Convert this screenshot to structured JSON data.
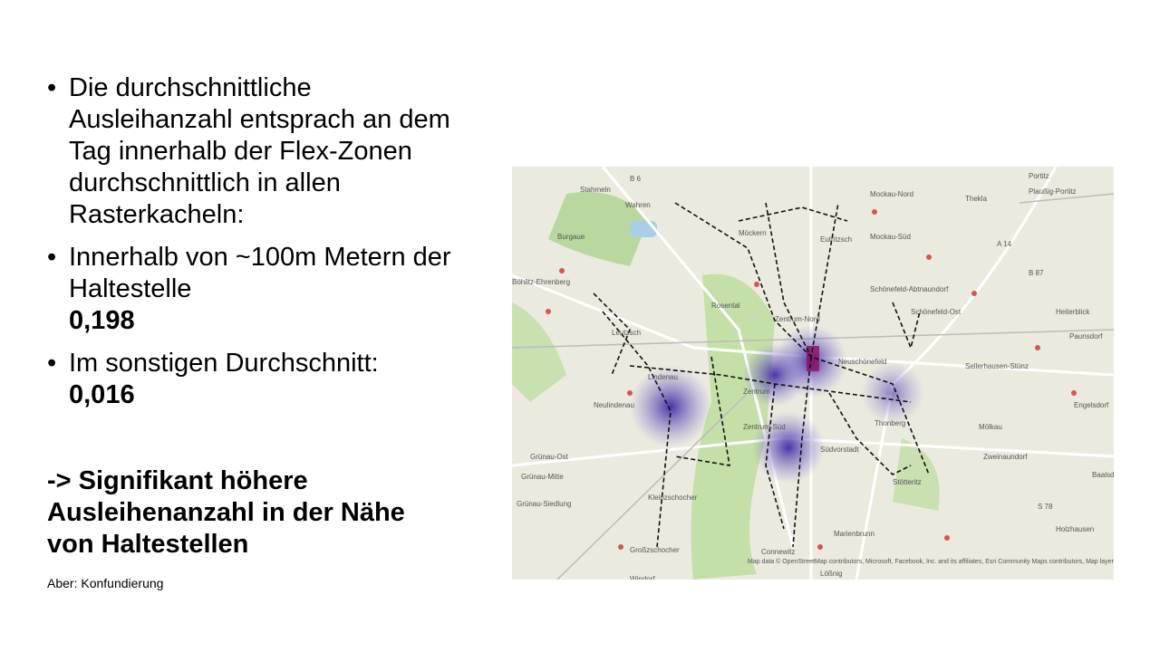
{
  "bullets": [
    {
      "text": "Die durchschnittliche Ausleihanzahl entsprach an dem Tag innerhalb der Flex-Zonen durchschnittlich in allen Rasterkacheln:"
    },
    {
      "text": "Innerhalb von ~100m Metern der Haltestelle",
      "value": "0,198"
    },
    {
      "text": "Im sonstigen Durchschnitt:",
      "value": "0,016"
    }
  ],
  "conclusion": "-> Signifikant höhere Ausleihenanzahl in der Nähe von Haltestellen",
  "note": "Aber: Konfundierung",
  "map": {
    "labels": [
      "Stahmeln",
      "Wahren",
      "Burgaue",
      "Böhlitz-Ehrenberg",
      "Möckern",
      "Eutritzsch",
      "Mockau-Nord",
      "Mockau-Süd",
      "Thekla",
      "Portitz",
      "Plaußig-Portitz",
      "Schönefeld-Abtnaundorf",
      "Schönefeld-Ost",
      "Heiterblick",
      "Paunsdorf",
      "Sellerhausen-Stünz",
      "Engelsdorf",
      "Mölkau",
      "Zweinaundorf",
      "Baalsdorf",
      "Holzhausen",
      "Marienbrunn",
      "Connewitz",
      "Lößnig",
      "Großzschocher",
      "Windorf",
      "Kleinzschocher",
      "Grünau-Siedlung",
      "Grünau-Mitte",
      "Grünau-Ost",
      "Lindenau",
      "Neulindenau",
      "Leutzsch",
      "Rosental",
      "Zentrum-Nord",
      "Zentrum",
      "Zentrum-Süd",
      "Südvorstadt",
      "Stötteritz",
      "Thonberg",
      "Neuschönefeld",
      "B 6",
      "A 14",
      "B 87",
      "S 78"
    ],
    "attribution": "Map data © OpenStreetMap contributors, Microsoft, Facebook, Inc. and its affiliates, Esri Community Maps contributors, Map layer by Esri"
  }
}
